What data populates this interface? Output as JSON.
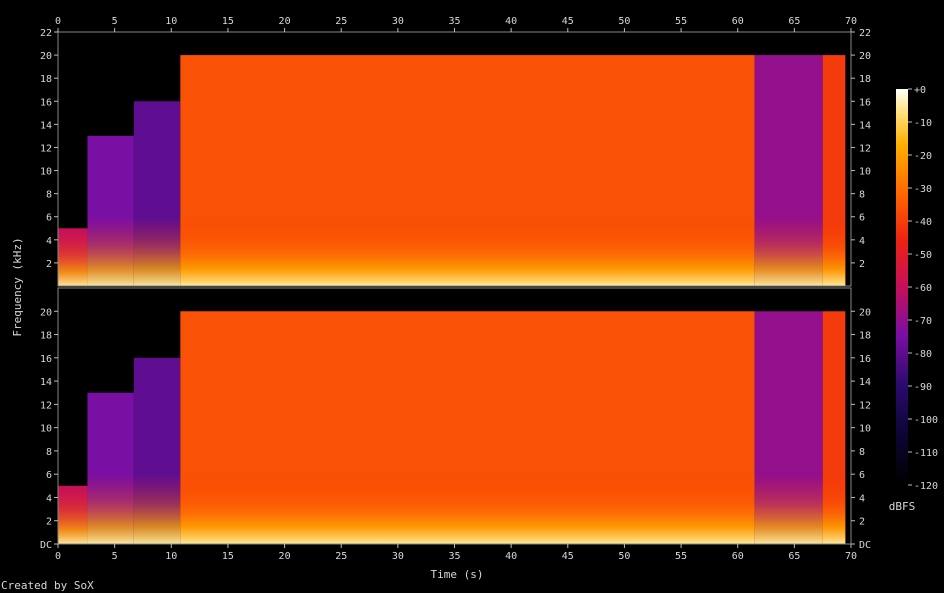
{
  "chart_data": {
    "type": "heatmap",
    "title": "",
    "xlabel": "Time (s)",
    "ylabel": "Frequency (kHz)",
    "footer": "Created by SoX",
    "colorbar": {
      "label": "dBFS",
      "ticks": [
        "+0",
        "-10",
        "-20",
        "-30",
        "-40",
        "-50",
        "-60",
        "-70",
        "-80",
        "-90",
        "-100",
        "-110",
        "-120"
      ],
      "range": [
        -120,
        0
      ]
    },
    "xlim": [
      0,
      70
    ],
    "ylim_khz": [
      0,
      22
    ],
    "x_ticks": [
      "0",
      "5",
      "10",
      "15",
      "20",
      "25",
      "30",
      "35",
      "40",
      "45",
      "50",
      "55",
      "60",
      "65",
      "70"
    ],
    "y_ticks_upper": [
      "2",
      "4",
      "6",
      "8",
      "10",
      "12",
      "14",
      "16",
      "18",
      "20",
      "22"
    ],
    "y_ticks_lower": [
      "DC",
      "2",
      "4",
      "6",
      "8",
      "10",
      "12",
      "14",
      "16",
      "18",
      "20"
    ],
    "channels": [
      {
        "channel": 1,
        "segments": [
          {
            "t_start": 0.0,
            "t_end": 2.6,
            "f_top_khz": 5,
            "level_db": -60
          },
          {
            "t_start": 2.6,
            "t_end": 6.7,
            "f_top_khz": 13,
            "level_db": -75
          },
          {
            "t_start": 6.7,
            "t_end": 10.8,
            "f_top_khz": 16,
            "level_db": -80
          },
          {
            "t_start": 10.8,
            "t_end": 61.5,
            "f_top_khz": 20,
            "level_db": -35
          },
          {
            "t_start": 61.5,
            "t_end": 67.5,
            "f_top_khz": 20,
            "level_db": -70
          },
          {
            "t_start": 67.5,
            "t_end": 69.5,
            "f_top_khz": 20,
            "level_db": -40
          }
        ]
      },
      {
        "channel": 2,
        "segments": [
          {
            "t_start": 0.0,
            "t_end": 2.6,
            "f_top_khz": 5,
            "level_db": -60
          },
          {
            "t_start": 2.6,
            "t_end": 6.7,
            "f_top_khz": 13,
            "level_db": -75
          },
          {
            "t_start": 6.7,
            "t_end": 10.8,
            "f_top_khz": 16,
            "level_db": -80
          },
          {
            "t_start": 10.8,
            "t_end": 61.5,
            "f_top_khz": 20,
            "level_db": -35
          },
          {
            "t_start": 61.5,
            "t_end": 67.5,
            "f_top_khz": 20,
            "level_db": -70
          },
          {
            "t_start": 67.5,
            "t_end": 69.5,
            "f_top_khz": 20,
            "level_db": -40
          }
        ]
      }
    ]
  }
}
